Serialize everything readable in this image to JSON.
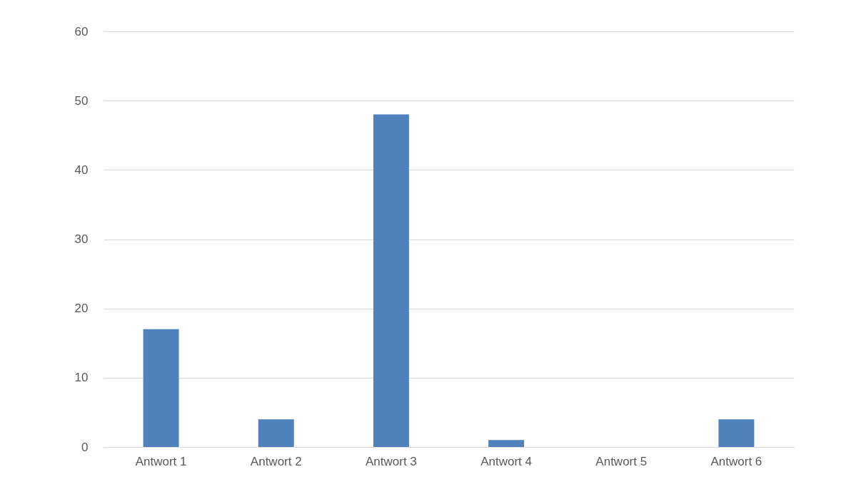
{
  "chart_data": {
    "type": "bar",
    "categories": [
      "Antwort 1",
      "Antwort 2",
      "Antwort 3",
      "Antwort 4",
      "Antwort 5",
      "Antwort 6"
    ],
    "values": [
      17,
      4,
      48,
      1,
      0,
      4
    ],
    "color": "#4f81bd",
    "ylim": [
      0,
      60
    ],
    "yticks": [
      0,
      10,
      20,
      30,
      40,
      50,
      60
    ],
    "grid": "y"
  }
}
